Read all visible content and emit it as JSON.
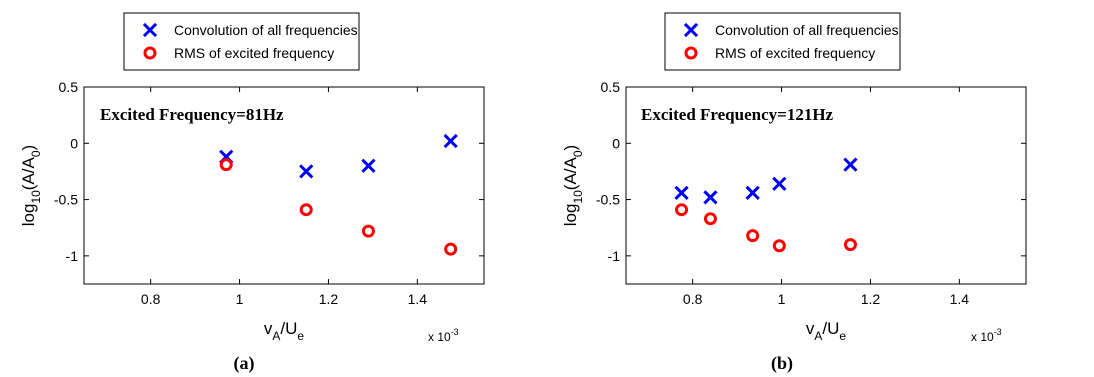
{
  "chart_data": [
    {
      "type": "scatter",
      "panel_label": "(a)",
      "annotation": "Excited Frequency=81Hz",
      "xlabel": {
        "main": "v",
        "sub1": "A",
        "mid": "/U",
        "sub2": "e"
      },
      "ylabel": {
        "main": "log",
        "sub1": "10",
        "mid": "(A/A",
        "sub2": "0",
        "tail": ")"
      },
      "x_exponent": {
        "base": "x 10",
        "power": "-3"
      },
      "xlim": [
        0.65,
        1.55
      ],
      "ylim": [
        -1.25,
        0.5
      ],
      "xticks": [
        "0.8",
        "1",
        "1.2",
        "1.4"
      ],
      "xtick_values": [
        0.8,
        1.0,
        1.2,
        1.4
      ],
      "yticks": [
        "0.5",
        "0",
        "-0.5",
        "-1"
      ],
      "ytick_values": [
        0.5,
        0,
        -0.5,
        -1
      ],
      "series": [
        {
          "name": "Convolution of all frequencies",
          "marker": "x",
          "color": "#0000ff",
          "x": [
            0.97,
            1.15,
            1.29,
            1.475
          ],
          "y": [
            -0.12,
            -0.25,
            -0.2,
            0.02
          ]
        },
        {
          "name": "RMS of excited frequency",
          "marker": "o",
          "color": "#ff0000",
          "x": [
            0.97,
            1.15,
            1.29,
            1.475
          ],
          "y": [
            -0.19,
            -0.59,
            -0.78,
            -0.94
          ]
        }
      ]
    },
    {
      "type": "scatter",
      "panel_label": "(b)",
      "annotation": "Excited Frequency=121Hz",
      "xlabel": {
        "main": "v",
        "sub1": "A",
        "mid": "/U",
        "sub2": "e"
      },
      "ylabel": {
        "main": "log",
        "sub1": "10",
        "mid": "(A/A",
        "sub2": "0",
        "tail": ")"
      },
      "x_exponent": {
        "base": "x 10",
        "power": "-3"
      },
      "xlim": [
        0.65,
        1.55
      ],
      "ylim": [
        -1.25,
        0.5
      ],
      "xticks": [
        "0.8",
        "1",
        "1.2",
        "1.4"
      ],
      "xtick_values": [
        0.8,
        1.0,
        1.2,
        1.4
      ],
      "yticks": [
        "0.5",
        "0",
        "-0.5",
        "-1"
      ],
      "ytick_values": [
        0.5,
        0,
        -0.5,
        -1
      ],
      "series": [
        {
          "name": "Convolution of all frequencies",
          "marker": "x",
          "color": "#0000ff",
          "x": [
            0.775,
            0.84,
            0.935,
            0.995,
            1.155
          ],
          "y": [
            -0.44,
            -0.48,
            -0.44,
            -0.36,
            -0.19
          ]
        },
        {
          "name": "RMS of excited frequency",
          "marker": "o",
          "color": "#ff0000",
          "x": [
            0.775,
            0.84,
            0.935,
            0.995,
            1.155
          ],
          "y": [
            -0.59,
            -0.67,
            -0.82,
            -0.91,
            -0.9
          ]
        }
      ]
    }
  ]
}
